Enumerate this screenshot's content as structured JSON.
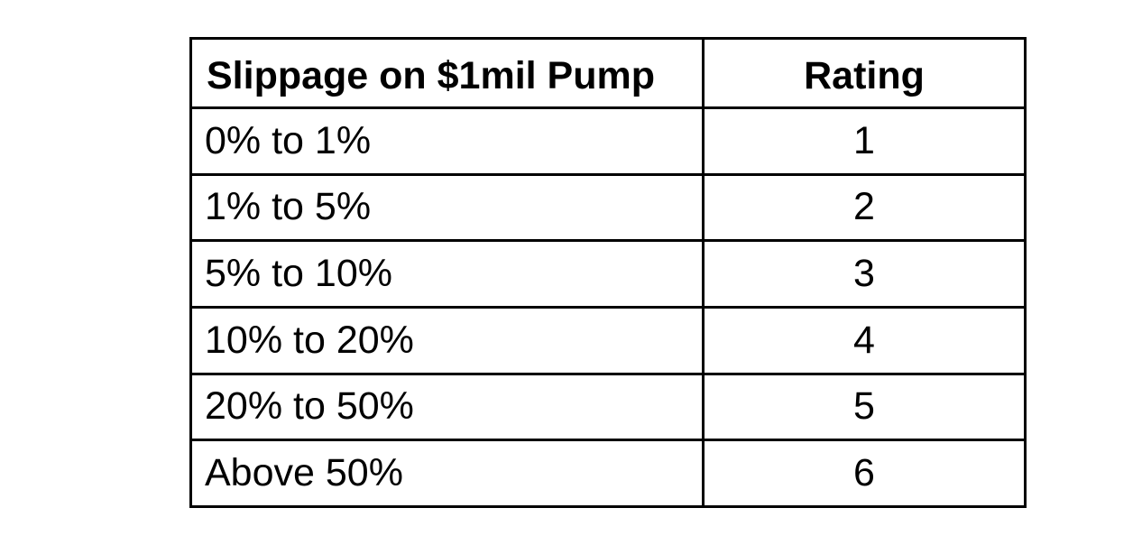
{
  "table": {
    "headers": [
      "Slippage on $1mil Pump",
      "Rating"
    ],
    "rows": [
      {
        "slippage": "0% to 1%",
        "rating": "1"
      },
      {
        "slippage": "1% to 5%",
        "rating": "2"
      },
      {
        "slippage": "5% to 10%",
        "rating": "3"
      },
      {
        "slippage": "10% to 20%",
        "rating": "4"
      },
      {
        "slippage": "20% to 50%",
        "rating": "5"
      },
      {
        "slippage": "Above 50%",
        "rating": "6"
      }
    ]
  }
}
